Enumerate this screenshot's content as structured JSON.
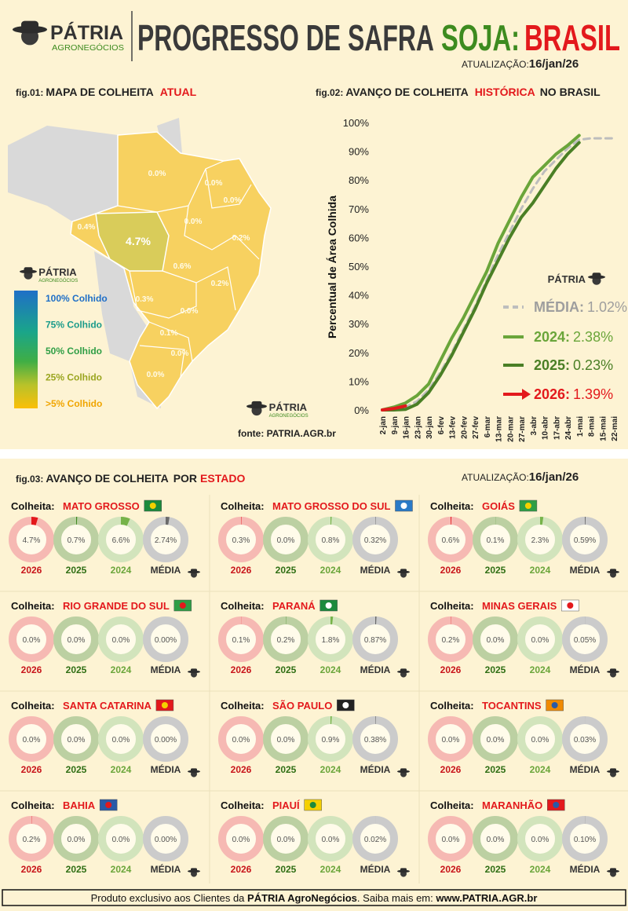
{
  "header": {
    "brand": "PÁTRIA",
    "brand_sub": "AGRONEGÓCIOS",
    "title": "PROGRESSO DE SAFRA",
    "crop": "SOJA:",
    "region": "BRASIL",
    "update_label": "ATUALIZAÇÃO:",
    "update_date": "16/jan/26"
  },
  "fig01": {
    "label": "fig.01:",
    "title": "MAPA DE COLHEITA",
    "highlight": "ATUAL",
    "map_labels": [
      "0.0%",
      "0.0%",
      "0.0%",
      "0.4%",
      "4.7%",
      "0.0%",
      "0.2%",
      "0.6%",
      "0.2%",
      "0.3%",
      "0.0%",
      "0.1%",
      "0.0%",
      "0.0%"
    ],
    "legend": [
      "100% Colhido",
      "75% Colhido",
      "50% Colhido",
      "25% Colhido",
      ">5% Colhido"
    ],
    "source": "fonte: PATRIA.AGR.br"
  },
  "fig02": {
    "label": "fig.02:",
    "title": "AVANÇO DE COLHEITA",
    "highlight": "HISTÓRICA",
    "title_end": "NO BRASIL"
  },
  "chart_data": {
    "type": "line",
    "ylabel": "Percentual de Área Colhida",
    "categories": [
      "2-jan",
      "9-jan",
      "16-jan",
      "23-jan",
      "30-jan",
      "6-fev",
      "13-fev",
      "20-fev",
      "27-fev",
      "6-mar",
      "13-mar",
      "20-mar",
      "27-mar",
      "3-abr",
      "10-abr",
      "17-abr",
      "24-abr",
      "1-mai",
      "8-mai",
      "15-mai",
      "22-mai"
    ],
    "ylim": [
      0,
      100
    ],
    "yticks": [
      {
        "value": 0,
        "label": "0%"
      },
      {
        "value": 10,
        "label": "10%"
      },
      {
        "value": 20,
        "label": "20%"
      },
      {
        "value": 30,
        "label": "30%"
      },
      {
        "value": 40,
        "label": "40%"
      },
      {
        "value": 50,
        "label": "50%"
      },
      {
        "value": 60,
        "label": "60%"
      },
      {
        "value": 70,
        "label": "70%"
      },
      {
        "value": 80,
        "label": "80%"
      },
      {
        "value": 90,
        "label": "90%"
      },
      {
        "value": 100,
        "label": "100%"
      }
    ],
    "series": [
      {
        "name": "MÉDIA:",
        "current_label": "1.02%",
        "color": "#bdbdbd",
        "dashed": true,
        "values": [
          0,
          0.5,
          1,
          3,
          7,
          13,
          20,
          28,
          36,
          45,
          54,
          62,
          70,
          77,
          83,
          87,
          91,
          94,
          94.5,
          94.5,
          94.5
        ]
      },
      {
        "name": "2024:",
        "current_label": "2.38%",
        "color": "#6aa53a",
        "dashed": false,
        "values": [
          0,
          1,
          2.4,
          5,
          9,
          17,
          25,
          32,
          40,
          48,
          58,
          66,
          74,
          81,
          85,
          89,
          92,
          95.5,
          null,
          null,
          null
        ]
      },
      {
        "name": "2025:",
        "current_label": "0.23%",
        "color": "#4a7f25",
        "dashed": false,
        "values": [
          0,
          0,
          0.2,
          2,
          6,
          12,
          19,
          27,
          35,
          44,
          52,
          60,
          67,
          72,
          78,
          84,
          89,
          93,
          null,
          null,
          null
        ]
      },
      {
        "name": "2026:",
        "current_label": "1.39%",
        "color": "#e3191c",
        "dashed": false,
        "values": [
          0,
          0.5,
          1.39,
          null,
          null,
          null,
          null,
          null,
          null,
          null,
          null,
          null,
          null,
          null,
          null,
          null,
          null,
          null,
          null,
          null,
          null
        ]
      }
    ]
  },
  "fig03": {
    "label": "fig.03:",
    "title": "AVANÇO DE COLHEITA",
    "middle": "POR",
    "highlight": "ESTADO",
    "update_label": "ATUALIZAÇÃO:",
    "update_date": "16/jan/26",
    "prefix": "Colheita:",
    "ring_labels": [
      "2026",
      "2025",
      "2024",
      "MÉDIA"
    ],
    "ring_lim": [
      0,
      100
    ],
    "ring_colors": [
      {
        "track": "#f6b9b3",
        "arc": "#e3191c",
        "text": "#c8141a"
      },
      {
        "track": "#bcd0a2",
        "arc": "#3f8a1f",
        "text": "#2f6e14"
      },
      {
        "track": "#d2e4bc",
        "arc": "#77b34a",
        "text": "#6aa53a"
      },
      {
        "track": "#cbcbcb",
        "arc": "#6b6b6b",
        "text": "#333333"
      }
    ],
    "states": [
      {
        "name": "MATO GROSSO",
        "values": [
          4.7,
          0.7,
          6.6,
          2.74
        ],
        "value_labels": [
          "4.7%",
          "0.7%",
          "6.6%",
          "2.74%"
        ]
      },
      {
        "name": "MATO GROSSO DO SUL",
        "values": [
          0.3,
          0.0,
          0.8,
          0.32
        ],
        "value_labels": [
          "0.3%",
          "0.0%",
          "0.8%",
          "0.32%"
        ]
      },
      {
        "name": "GOIÁS",
        "values": [
          0.6,
          0.1,
          2.3,
          0.59
        ],
        "value_labels": [
          "0.6%",
          "0.1%",
          "2.3%",
          "0.59%"
        ]
      },
      {
        "name": "RIO GRANDE DO SUL",
        "values": [
          0.0,
          0.0,
          0.0,
          0.0
        ],
        "value_labels": [
          "0.0%",
          "0.0%",
          "0.0%",
          "0.00%"
        ]
      },
      {
        "name": "PARANÁ",
        "values": [
          0.1,
          0.2,
          1.8,
          0.87
        ],
        "value_labels": [
          "0.1%",
          "0.2%",
          "1.8%",
          "0.87%"
        ]
      },
      {
        "name": "MINAS GERAIS",
        "values": [
          0.2,
          0.0,
          0.0,
          0.05
        ],
        "value_labels": [
          "0.2%",
          "0.0%",
          "0.0%",
          "0.05%"
        ]
      },
      {
        "name": "SANTA CATARINA",
        "values": [
          0.0,
          0.0,
          0.0,
          0.0
        ],
        "value_labels": [
          "0.0%",
          "0.0%",
          "0.0%",
          "0.00%"
        ]
      },
      {
        "name": "SÃO PAULO",
        "values": [
          0.0,
          0.0,
          0.9,
          0.38
        ],
        "value_labels": [
          "0.0%",
          "0.0%",
          "0.9%",
          "0.38%"
        ]
      },
      {
        "name": "TOCANTINS",
        "values": [
          0.0,
          0.0,
          0.0,
          0.03
        ],
        "value_labels": [
          "0.0%",
          "0.0%",
          "0.0%",
          "0.03%"
        ]
      },
      {
        "name": "BAHIA",
        "values": [
          0.2,
          0.0,
          0.0,
          0.0
        ],
        "value_labels": [
          "0.2%",
          "0.0%",
          "0.0%",
          "0.00%"
        ]
      },
      {
        "name": "PIAUÍ",
        "values": [
          0.0,
          0.0,
          0.0,
          0.02
        ],
        "value_labels": [
          "0.0%",
          "0.0%",
          "0.0%",
          "0.02%"
        ]
      },
      {
        "name": "MARANHÃO",
        "values": [
          0.0,
          0.0,
          0.0,
          0.1
        ],
        "value_labels": [
          "0.0%",
          "0.0%",
          "0.0%",
          "0.10%"
        ]
      }
    ]
  },
  "footer": {
    "text": "Produto exclusivo aos Clientes da ",
    "brand": "PÁTRIA AgroNegócios",
    "middle": ". Saiba mais em: ",
    "url": "www.PATRIA.AGR.br"
  }
}
